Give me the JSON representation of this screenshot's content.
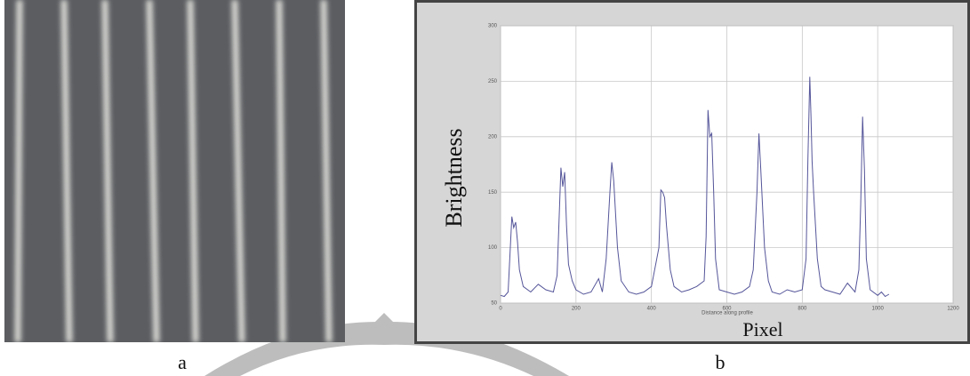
{
  "captions": [
    "a",
    "b"
  ],
  "chart_data": {
    "type": "line",
    "ylabel": "Brightness",
    "xlabel": "Pixel",
    "inner_xlabel": "Distance along profile",
    "xlim": [
      0,
      1200
    ],
    "xticks": [
      0,
      200,
      400,
      600,
      800,
      1000,
      1200
    ],
    "ylim": [
      50,
      300
    ],
    "yticks": [
      50,
      100,
      150,
      200,
      250,
      300
    ],
    "grid": true,
    "color": "#55559a",
    "x": [
      0,
      10,
      20,
      30,
      35,
      40,
      45,
      50,
      60,
      80,
      100,
      120,
      140,
      150,
      160,
      165,
      170,
      175,
      180,
      190,
      200,
      220,
      240,
      260,
      270,
      280,
      290,
      295,
      300,
      310,
      320,
      340,
      360,
      380,
      400,
      420,
      425,
      430,
      435,
      440,
      450,
      460,
      480,
      500,
      520,
      540,
      545,
      550,
      555,
      560,
      565,
      570,
      580,
      600,
      620,
      640,
      660,
      670,
      680,
      685,
      690,
      700,
      710,
      720,
      740,
      760,
      780,
      800,
      810,
      815,
      820,
      823,
      826,
      830,
      840,
      850,
      860,
      880,
      900,
      920,
      940,
      950,
      955,
      960,
      965,
      970,
      980,
      1000,
      1010,
      1020,
      1030
    ],
    "values": [
      57,
      56,
      60,
      128,
      118,
      123,
      105,
      80,
      65,
      60,
      67,
      62,
      60,
      75,
      172,
      155,
      168,
      120,
      85,
      70,
      62,
      58,
      60,
      72,
      60,
      90,
      150,
      177,
      160,
      100,
      70,
      60,
      58,
      60,
      65,
      100,
      152,
      150,
      145,
      120,
      80,
      65,
      60,
      62,
      65,
      70,
      110,
      224,
      200,
      203,
      150,
      90,
      62,
      60,
      58,
      60,
      65,
      80,
      150,
      203,
      170,
      100,
      70,
      60,
      58,
      62,
      60,
      62,
      90,
      180,
      254,
      220,
      178,
      150,
      90,
      65,
      62,
      60,
      58,
      68,
      60,
      80,
      140,
      218,
      170,
      90,
      62,
      57,
      60,
      56,
      58
    ]
  }
}
